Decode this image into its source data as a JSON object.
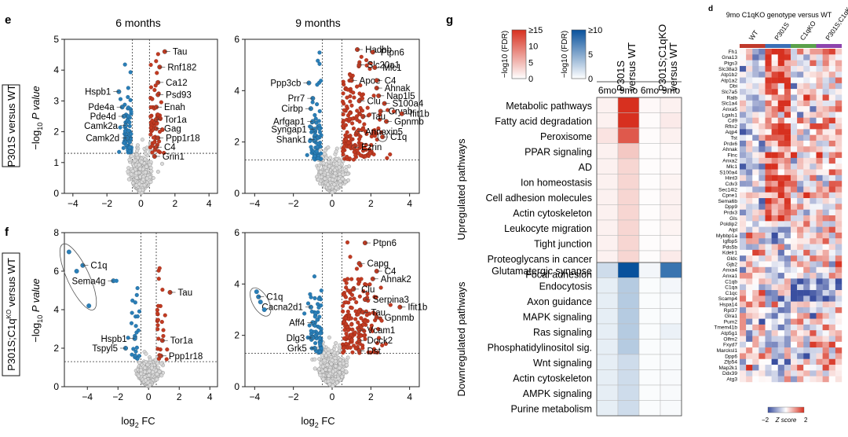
{
  "panels": {
    "e": "e",
    "f": "f",
    "g": "g",
    "d": "d"
  },
  "volcano": {
    "col_titles": [
      "6 months",
      "9 months"
    ],
    "row_labels": [
      "P301S versus WT",
      "P301S;C1q",
      "KO",
      "versus WT"
    ],
    "xlabel": "log",
    "xlabel_sub": "2",
    "xlabel_tail": " FC",
    "ylabel": "−log",
    "ylabel_sub": "10",
    "ylabel_tail": " P value",
    "xticks": [
      -4,
      -2,
      0,
      2,
      4
    ],
    "colors": {
      "up": "#c23b22",
      "down": "#2a7fb8",
      "ns": "#b5b5b5"
    }
  },
  "chart_data": [
    {
      "type": "scatter",
      "id": "e6",
      "xlabel": "log2 FC",
      "ylabel": "-log10 P value",
      "xlim": [
        -4.5,
        4.5
      ],
      "ylim": [
        0,
        5
      ],
      "yticks": [
        0,
        1,
        2,
        3,
        4,
        5
      ],
      "thresholds": {
        "x": [
          -0.5,
          0.5
        ],
        "y": 1.3
      },
      "labels": [
        {
          "text": "Tau",
          "x": 1.4,
          "y": 4.6,
          "side": "r"
        },
        {
          "text": "Rnf182",
          "x": 1.1,
          "y": 4.1,
          "side": "r"
        },
        {
          "text": "Ca12",
          "x": 1.0,
          "y": 3.6,
          "side": "r"
        },
        {
          "text": "Psd93",
          "x": 1.0,
          "y": 3.2,
          "side": "r"
        },
        {
          "text": "Enah",
          "x": 0.9,
          "y": 2.8,
          "side": "r"
        },
        {
          "text": "Tor1a",
          "x": 0.9,
          "y": 2.4,
          "side": "r"
        },
        {
          "text": "Gag",
          "x": 0.9,
          "y": 2.1,
          "side": "r"
        },
        {
          "text": "Ppp1r18",
          "x": 1.0,
          "y": 1.8,
          "side": "r"
        },
        {
          "text": "C4",
          "x": 0.9,
          "y": 1.5,
          "side": "r"
        },
        {
          "text": "Grin1",
          "x": 0.8,
          "y": 1.2,
          "side": "r"
        },
        {
          "text": "Hspb1",
          "x": -1.3,
          "y": 3.3,
          "side": "l"
        },
        {
          "text": "Pde4a",
          "x": -1.1,
          "y": 2.8,
          "side": "l"
        },
        {
          "text": "Pde4d",
          "x": -1.0,
          "y": 2.5,
          "side": "l"
        },
        {
          "text": "Camk2a",
          "x": -0.9,
          "y": 2.2,
          "side": "l"
        },
        {
          "text": "Camk2d",
          "x": -0.8,
          "y": 1.8,
          "side": "l"
        }
      ]
    },
    {
      "type": "scatter",
      "id": "e9",
      "xlabel": "log2 FC",
      "ylabel": "-log10 P value",
      "xlim": [
        -4.5,
        4.5
      ],
      "ylim": [
        0,
        6
      ],
      "yticks": [
        0,
        2,
        4,
        6
      ],
      "thresholds": {
        "x": [
          -0.5,
          0.5
        ],
        "y": 1.3
      },
      "labels": [
        {
          "text": "Hadhb",
          "x": 1.3,
          "y": 5.6,
          "side": "r"
        },
        {
          "text": "Ptpn6",
          "x": 2.1,
          "y": 5.5,
          "side": "r"
        },
        {
          "text": "Slc20a1",
          "x": 1.4,
          "y": 5.0,
          "side": "r"
        },
        {
          "text": "Mlc1",
          "x": 2.2,
          "y": 4.9,
          "side": "r"
        },
        {
          "text": "Apoe",
          "x": 1.0,
          "y": 4.4,
          "side": "r"
        },
        {
          "text": "C4",
          "x": 2.3,
          "y": 4.4,
          "side": "r"
        },
        {
          "text": "Ahnak",
          "x": 2.3,
          "y": 4.1,
          "side": "r"
        },
        {
          "text": "Nap1l5",
          "x": 2.4,
          "y": 3.8,
          "side": "r"
        },
        {
          "text": "Clu",
          "x": 1.4,
          "y": 3.6,
          "side": "r"
        },
        {
          "text": "S100a4",
          "x": 2.7,
          "y": 3.5,
          "side": "r"
        },
        {
          "text": "Cryab",
          "x": 2.5,
          "y": 3.2,
          "side": "r"
        },
        {
          "text": "Tau",
          "x": 1.6,
          "y": 3.0,
          "side": "r"
        },
        {
          "text": "Ifit1b",
          "x": 3.6,
          "y": 3.1,
          "side": "r"
        },
        {
          "text": "Gpnmb",
          "x": 2.8,
          "y": 2.8,
          "side": "r"
        },
        {
          "text": "Annexin5",
          "x": 1.3,
          "y": 2.4,
          "side": "r"
        },
        {
          "text": "C1q",
          "x": 2.6,
          "y": 2.2,
          "side": "r"
        },
        {
          "text": "Ezrin",
          "x": 1.1,
          "y": 1.8,
          "side": "r"
        },
        {
          "text": "Ppp3cb",
          "x": -1.2,
          "y": 4.3,
          "side": "l"
        },
        {
          "text": "Prr7",
          "x": -1.0,
          "y": 3.7,
          "side": "l"
        },
        {
          "text": "Cirbp",
          "x": -1.1,
          "y": 3.3,
          "side": "l"
        },
        {
          "text": "Arfgap1",
          "x": -1.0,
          "y": 2.8,
          "side": "l"
        },
        {
          "text": "Syngap1",
          "x": -0.9,
          "y": 2.5,
          "side": "l"
        },
        {
          "text": "Shank1",
          "x": -0.9,
          "y": 2.1,
          "side": "l"
        }
      ]
    },
    {
      "type": "scatter",
      "id": "f6",
      "xlabel": "log2 FC",
      "ylabel": "-log10 P value",
      "xlim": [
        -5.5,
        4.5
      ],
      "ylim": [
        0,
        8
      ],
      "yticks": [
        0,
        2,
        4,
        6,
        8
      ],
      "thresholds": {
        "x": [
          -0.5,
          0.5
        ],
        "y": 1.3
      },
      "labels": [
        {
          "text": "C1q",
          "x": -4.3,
          "y": 6.3,
          "side": "r"
        },
        {
          "text": "Sema4g",
          "x": -2.3,
          "y": 5.5,
          "side": "l"
        },
        {
          "text": "Tau",
          "x": 1.4,
          "y": 4.9,
          "side": "r"
        },
        {
          "text": "Hspb1",
          "x": -0.9,
          "y": 2.5,
          "side": "l"
        },
        {
          "text": "Tor1a",
          "x": 0.9,
          "y": 2.4,
          "side": "r"
        },
        {
          "text": "Tspyl5",
          "x": -1.5,
          "y": 2.0,
          "side": "l"
        },
        {
          "text": "Ppp1r18",
          "x": 0.8,
          "y": 1.6,
          "side": "r"
        }
      ]
    },
    {
      "type": "scatter",
      "id": "f9",
      "xlabel": "log2 FC",
      "ylabel": "-log10 P value",
      "xlim": [
        -4.5,
        4.5
      ],
      "ylim": [
        0,
        6
      ],
      "yticks": [
        0,
        2,
        4,
        6
      ],
      "thresholds": {
        "x": [
          -0.5,
          0.5
        ],
        "y": 1.3
      },
      "labels": [
        {
          "text": "Ptpn6",
          "x": 1.7,
          "y": 5.6,
          "side": "r"
        },
        {
          "text": "Capg",
          "x": 1.4,
          "y": 4.8,
          "side": "r"
        },
        {
          "text": "C4",
          "x": 2.3,
          "y": 4.5,
          "side": "r"
        },
        {
          "text": "Ahnak2",
          "x": 2.1,
          "y": 4.2,
          "side": "r"
        },
        {
          "text": "Clu",
          "x": 1.1,
          "y": 3.8,
          "side": "r"
        },
        {
          "text": "Serpina3",
          "x": 1.7,
          "y": 3.4,
          "side": "r"
        },
        {
          "text": "Tau",
          "x": 1.6,
          "y": 2.9,
          "side": "r"
        },
        {
          "text": "Ifit1b",
          "x": 3.5,
          "y": 3.1,
          "side": "r"
        },
        {
          "text": "Gpnmb",
          "x": 2.3,
          "y": 2.7,
          "side": "r"
        },
        {
          "text": "Vcam1",
          "x": 1.4,
          "y": 2.2,
          "side": "r"
        },
        {
          "text": "Dock2",
          "x": 1.4,
          "y": 1.8,
          "side": "r"
        },
        {
          "text": "Dst",
          "x": 1.4,
          "y": 1.4,
          "side": "r"
        },
        {
          "text": "C1q",
          "x": -3.8,
          "y": 3.5,
          "side": "r"
        },
        {
          "text": "Cacna2d1",
          "x": -1.1,
          "y": 3.1,
          "side": "l"
        },
        {
          "text": "Aff4",
          "x": -1.0,
          "y": 2.5,
          "side": "l"
        },
        {
          "text": "Dlg3",
          "x": -1.0,
          "y": 1.9,
          "side": "l"
        },
        {
          "text": "Grk5",
          "x": -0.9,
          "y": 1.5,
          "side": "l"
        }
      ]
    },
    {
      "type": "heatmap",
      "id": "g",
      "columns": [
        "6mo",
        "9mo",
        "6mo",
        "9mo"
      ],
      "col_groups": [
        "P301S versus WT",
        "P301S;C1qKO versus WT"
      ],
      "row_groups": [
        "Upregulated pathways",
        "Downregulated pathways"
      ],
      "up_rows": [
        "Metabolic pathways",
        "Fatty acid degradation",
        "Peroxisome",
        "PPAR signaling",
        "AD",
        "Ion homeostasis",
        "Cell adhesion molecules",
        "Actin cytoskeleton",
        "Leukocyte migration",
        "Tight junction",
        "Proteoglycans in cancer",
        "Focal adhesion"
      ],
      "up_values": [
        [
          1,
          15,
          0.5,
          1
        ],
        [
          1,
          15,
          0.3,
          1.5
        ],
        [
          2,
          12,
          0.3,
          1
        ],
        [
          1,
          4,
          0.2,
          0.5
        ],
        [
          1,
          3,
          0.2,
          0.5
        ],
        [
          1,
          3,
          0.2,
          0.8
        ],
        [
          1,
          3,
          0.2,
          1
        ],
        [
          1,
          3,
          0.2,
          1
        ],
        [
          1,
          3,
          0.2,
          0.8
        ],
        [
          1,
          3,
          0.2,
          0.5
        ],
        [
          1,
          3,
          0.2,
          1.5
        ],
        [
          1,
          3,
          0.2,
          1
        ]
      ],
      "down_rows": [
        "Glutamatergic synapse",
        "Endocytosis",
        "Axon guidance",
        "MAPK signaling",
        "Ras signaling",
        "Phosphatidylinositol sig.",
        "Wnt signaling",
        "Actin cytoskeleton",
        "AMPK signaling",
        "Purine metabolism"
      ],
      "down_values": [
        [
          2,
          10,
          0.5,
          8
        ],
        [
          1,
          3,
          0.2,
          0.5
        ],
        [
          1,
          3,
          0.2,
          0.3
        ],
        [
          1,
          3,
          0.2,
          0.3
        ],
        [
          1,
          3,
          0.2,
          0.8
        ],
        [
          1,
          3,
          0.2,
          0.3
        ],
        [
          1,
          2,
          0.2,
          0.3
        ],
        [
          1,
          2,
          0.2,
          0.3
        ],
        [
          1,
          2,
          0.2,
          0.3
        ],
        [
          1,
          2,
          0.2,
          0.3
        ]
      ],
      "legend_up": {
        "label": "−log10 (FDR)",
        "ticks": [
          "0",
          "5",
          "10",
          "≥15"
        ],
        "color": "#d7301f"
      },
      "legend_down": {
        "label": "−log10 (FDR)",
        "ticks": [
          "0",
          "5",
          "≥10"
        ],
        "color": "#08519c"
      }
    },
    {
      "type": "heatmap",
      "id": "d",
      "title": "9mo C1qKO genotype versus WT",
      "groups": [
        "WT",
        "P301S",
        "C1qKO",
        "P301S;C1qKO"
      ],
      "group_colors": [
        "#c0392b",
        "#3b6fb6",
        "#5aa04a",
        "#8e44ad"
      ],
      "genes": [
        "Fh1",
        "Gna13",
        "Ptgs3",
        "Slc38a3",
        "Atp1b2",
        "Atp1a2",
        "Dbi",
        "Slc7a5",
        "Ralb",
        "Slc1a4",
        "Anxa5",
        "Lgals1",
        "Cd9",
        "Rftn2",
        "Aqp4",
        "Tst",
        "Prdx6",
        "Ahnak",
        "Flnc",
        "Anxa2",
        "Mlc1",
        "S100a4",
        "Hint3",
        "Cdv3",
        "Sec14l2",
        "Cpne1",
        "Sema6b",
        "Dpp9",
        "Prdx3",
        "Gls",
        "Poldip2",
        "Alpl",
        "Mybbp1a",
        "Igfbp5",
        "Pds5b",
        "Kdelr1",
        "Gldc",
        "Gjb2",
        "Anxa4",
        "Anxa1",
        "C1qb",
        "C1qa",
        "C1qc",
        "Scamp4",
        "Hspa14",
        "Rpl37",
        "Glra1",
        "Pum2",
        "Tmem41b",
        "Atp5g1",
        "Olfm2",
        "Fxyd7",
        "Marcksl1",
        "Dpp6",
        "Zfp54",
        "Map2k1",
        "Ddx39",
        "Atg3"
      ],
      "zscore_label": "Z score",
      "zscore_ticks": [
        "−2",
        "2"
      ],
      "colors": {
        "low": "#3a4fa0",
        "mid": "#ffffff",
        "high": "#d7301f"
      }
    }
  ]
}
